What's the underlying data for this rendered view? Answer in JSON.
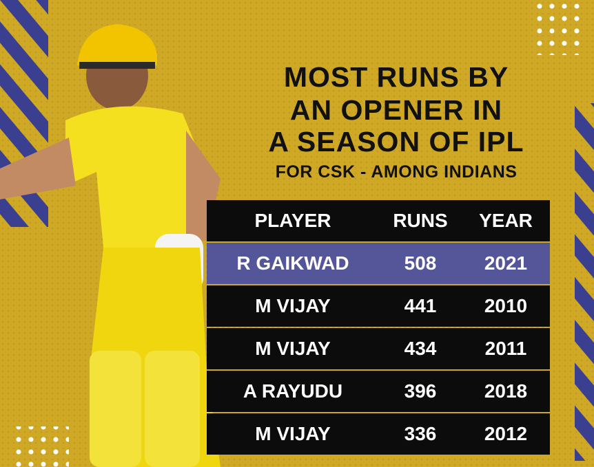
{
  "title_lines": [
    "MOST RUNS BY",
    "AN OPENER IN",
    "A SEASON OF IPL"
  ],
  "subtitle": "FOR CSK - AMONG INDIANS",
  "table": {
    "header": [
      "PLAYER",
      "RUNS",
      "YEAR"
    ],
    "rows": [
      [
        "R GAIKWAD",
        "508",
        "2021"
      ],
      [
        "M VIJAY",
        "441",
        "2010"
      ],
      [
        "M VIJAY",
        "434",
        "2011"
      ],
      [
        "A RAYUDU",
        "396",
        "2018"
      ],
      [
        "M VIJAY",
        "336",
        "2012"
      ]
    ]
  }
}
